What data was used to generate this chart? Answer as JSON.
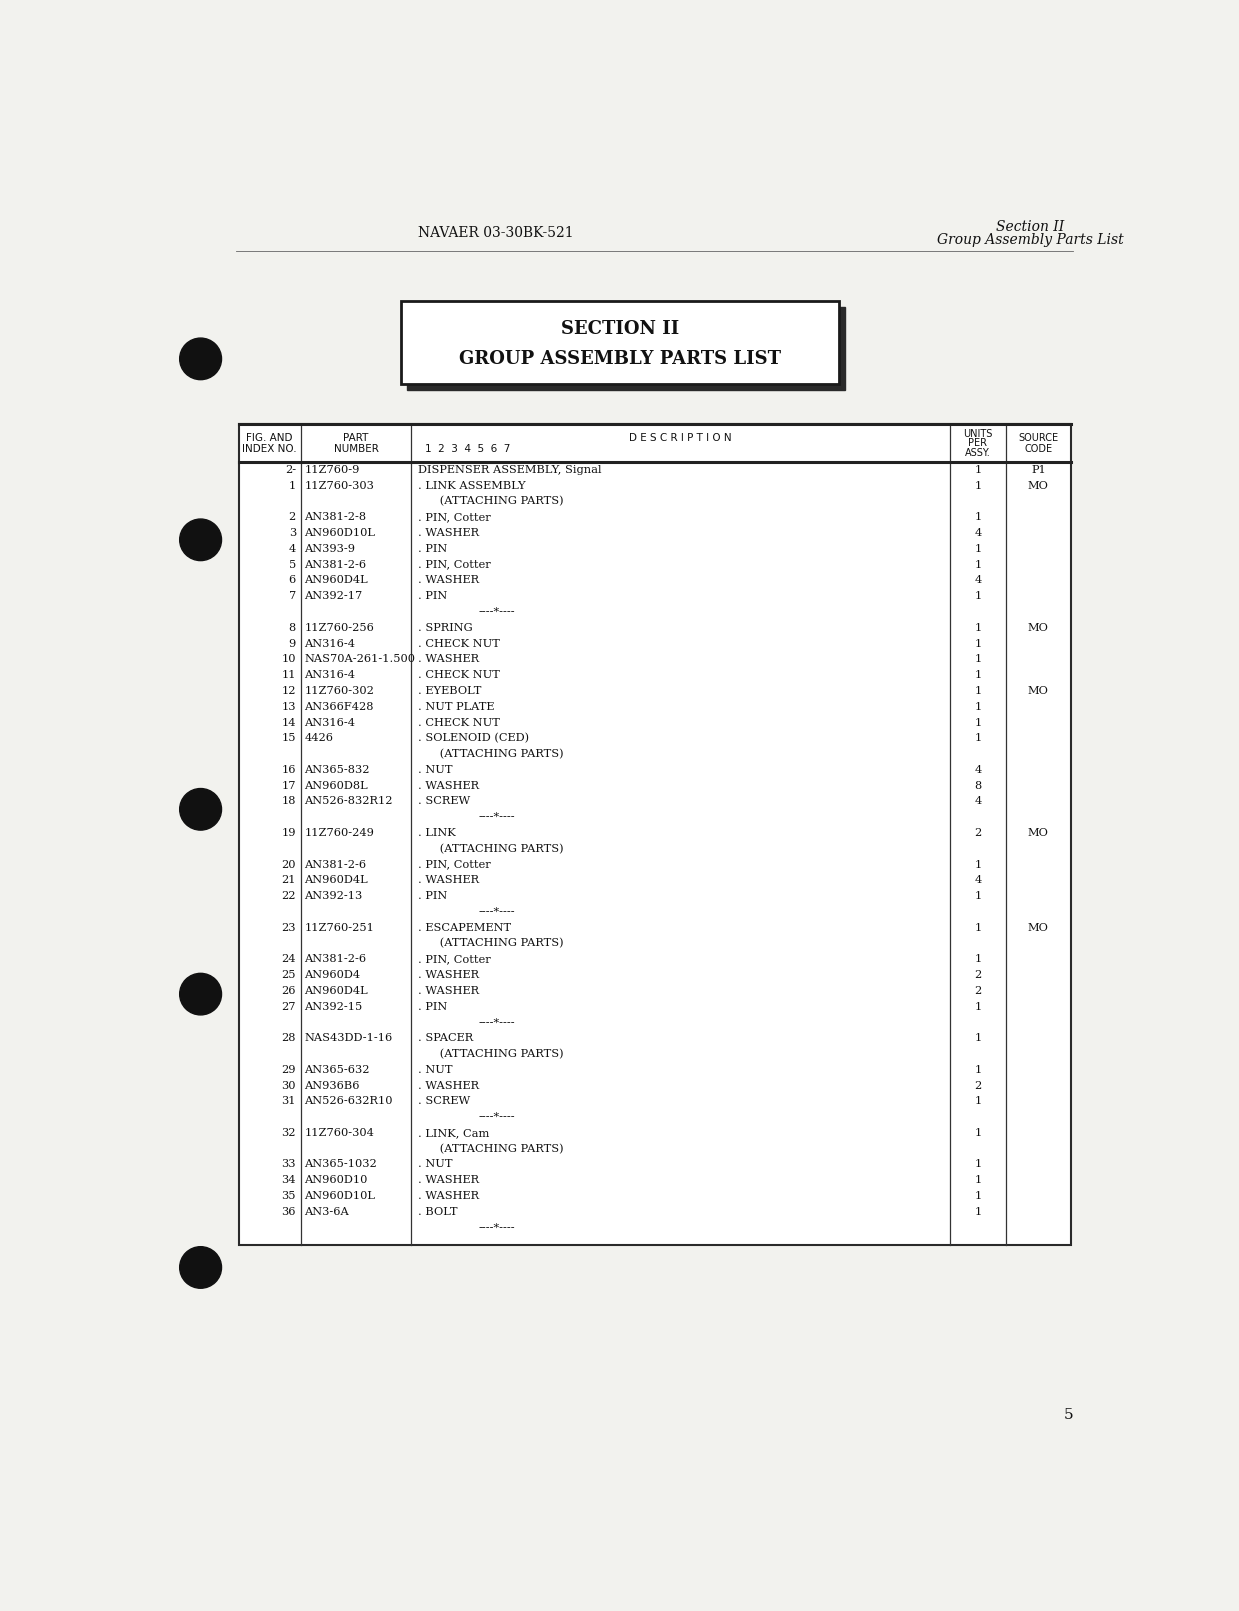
{
  "page_header_left": "NAVAER 03-30BK-521",
  "page_header_right_line1": "Section II",
  "page_header_right_line2": "Group Assembly Parts List",
  "section_title_line1": "SECTION II",
  "section_title_line2": "GROUP ASSEMBLY PARTS LIST",
  "page_number": "5",
  "table_headers": {
    "col1_line1": "FIG. AND",
    "col1_line2": "INDEX NO.",
    "col2_line1": "PART",
    "col2_line2": "NUMBER",
    "col3_line1": "D E S C R I P T I O N",
    "col3_line2": "1  2  3  4  5  6  7",
    "col4_line1": "UNITS",
    "col4_line2": "PER",
    "col4_line3": "ASSY.",
    "col5_line1": "SOURCE",
    "col5_line2": "CODE"
  },
  "rows": [
    {
      "fig": "2-",
      "part": "11Z760-9",
      "desc": "DISPENSER ASSEMBLY, Signal",
      "units": "1",
      "source": "P1",
      "separator": false
    },
    {
      "fig": "1",
      "part": "11Z760-303",
      "desc": ". LINK ASSEMBLY",
      "units": "1",
      "source": "MO",
      "separator": false
    },
    {
      "fig": "",
      "part": "",
      "desc": "      (ATTACHING PARTS)",
      "units": "",
      "source": "",
      "separator": false
    },
    {
      "fig": "2",
      "part": "AN381-2-8",
      "desc": ". PIN, Cotter",
      "units": "1",
      "source": "",
      "separator": false
    },
    {
      "fig": "3",
      "part": "AN960D10L",
      "desc": ". WASHER",
      "units": "4",
      "source": "",
      "separator": false
    },
    {
      "fig": "4",
      "part": "AN393-9",
      "desc": ". PIN",
      "units": "1",
      "source": "",
      "separator": false
    },
    {
      "fig": "5",
      "part": "AN381-2-6",
      "desc": ". PIN, Cotter",
      "units": "1",
      "source": "",
      "separator": false
    },
    {
      "fig": "6",
      "part": "AN960D4L",
      "desc": ". WASHER",
      "units": "4",
      "source": "",
      "separator": false
    },
    {
      "fig": "7",
      "part": "AN392-17",
      "desc": ". PIN",
      "units": "1",
      "source": "",
      "separator": false
    },
    {
      "fig": "",
      "part": "",
      "desc": "----*----",
      "units": "",
      "source": "",
      "separator": true
    },
    {
      "fig": "8",
      "part": "11Z760-256",
      "desc": ". SPRING",
      "units": "1",
      "source": "MO",
      "separator": false
    },
    {
      "fig": "9",
      "part": "AN316-4",
      "desc": ". CHECK NUT",
      "units": "1",
      "source": "",
      "separator": false
    },
    {
      "fig": "10",
      "part": "NAS70A-261-1.500",
      "desc": ". WASHER",
      "units": "1",
      "source": "",
      "separator": false
    },
    {
      "fig": "11",
      "part": "AN316-4",
      "desc": ". CHECK NUT",
      "units": "1",
      "source": "",
      "separator": false
    },
    {
      "fig": "12",
      "part": "11Z760-302",
      "desc": ". EYEBOLT",
      "units": "1",
      "source": "MO",
      "separator": false
    },
    {
      "fig": "13",
      "part": "AN366F428",
      "desc": ". NUT PLATE",
      "units": "1",
      "source": "",
      "separator": false
    },
    {
      "fig": "14",
      "part": "AN316-4",
      "desc": ". CHECK NUT",
      "units": "1",
      "source": "",
      "separator": false
    },
    {
      "fig": "15",
      "part": "4426",
      "desc": ". SOLENOID (CED)",
      "units": "1",
      "source": "",
      "separator": false
    },
    {
      "fig": "",
      "part": "",
      "desc": "      (ATTACHING PARTS)",
      "units": "",
      "source": "",
      "separator": false
    },
    {
      "fig": "16",
      "part": "AN365-832",
      "desc": ". NUT",
      "units": "4",
      "source": "",
      "separator": false
    },
    {
      "fig": "17",
      "part": "AN960D8L",
      "desc": ". WASHER",
      "units": "8",
      "source": "",
      "separator": false
    },
    {
      "fig": "18",
      "part": "AN526-832R12",
      "desc": ". SCREW",
      "units": "4",
      "source": "",
      "separator": false
    },
    {
      "fig": "",
      "part": "",
      "desc": "----*----",
      "units": "",
      "source": "",
      "separator": true
    },
    {
      "fig": "19",
      "part": "11Z760-249",
      "desc": ". LINK",
      "units": "2",
      "source": "MO",
      "separator": false
    },
    {
      "fig": "",
      "part": "",
      "desc": "      (ATTACHING PARTS)",
      "units": "",
      "source": "",
      "separator": false
    },
    {
      "fig": "20",
      "part": "AN381-2-6",
      "desc": ". PIN, Cotter",
      "units": "1",
      "source": "",
      "separator": false
    },
    {
      "fig": "21",
      "part": "AN960D4L",
      "desc": ". WASHER",
      "units": "4",
      "source": "",
      "separator": false
    },
    {
      "fig": "22",
      "part": "AN392-13",
      "desc": ". PIN",
      "units": "1",
      "source": "",
      "separator": false
    },
    {
      "fig": "",
      "part": "",
      "desc": "----*----",
      "units": "",
      "source": "",
      "separator": true
    },
    {
      "fig": "23",
      "part": "11Z760-251",
      "desc": ". ESCAPEMENT",
      "units": "1",
      "source": "MO",
      "separator": false
    },
    {
      "fig": "",
      "part": "",
      "desc": "      (ATTACHING PARTS)",
      "units": "",
      "source": "",
      "separator": false
    },
    {
      "fig": "24",
      "part": "AN381-2-6",
      "desc": ". PIN, Cotter",
      "units": "1",
      "source": "",
      "separator": false
    },
    {
      "fig": "25",
      "part": "AN960D4",
      "desc": ". WASHER",
      "units": "2",
      "source": "",
      "separator": false
    },
    {
      "fig": "26",
      "part": "AN960D4L",
      "desc": ". WASHER",
      "units": "2",
      "source": "",
      "separator": false
    },
    {
      "fig": "27",
      "part": "AN392-15",
      "desc": ". PIN",
      "units": "1",
      "source": "",
      "separator": false
    },
    {
      "fig": "",
      "part": "",
      "desc": "----*----",
      "units": "",
      "source": "",
      "separator": true
    },
    {
      "fig": "28",
      "part": "NAS43DD-1-16",
      "desc": ". SPACER",
      "units": "1",
      "source": "",
      "separator": false
    },
    {
      "fig": "",
      "part": "",
      "desc": "      (ATTACHING PARTS)",
      "units": "",
      "source": "",
      "separator": false
    },
    {
      "fig": "29",
      "part": "AN365-632",
      "desc": ". NUT",
      "units": "1",
      "source": "",
      "separator": false
    },
    {
      "fig": "30",
      "part": "AN936B6",
      "desc": ". WASHER",
      "units": "2",
      "source": "",
      "separator": false
    },
    {
      "fig": "31",
      "part": "AN526-632R10",
      "desc": ". SCREW",
      "units": "1",
      "source": "",
      "separator": false
    },
    {
      "fig": "",
      "part": "",
      "desc": "----*----",
      "units": "",
      "source": "",
      "separator": true
    },
    {
      "fig": "32",
      "part": "11Z760-304",
      "desc": ". LINK, Cam",
      "units": "1",
      "source": "",
      "separator": false
    },
    {
      "fig": "",
      "part": "",
      "desc": "      (ATTACHING PARTS)",
      "units": "",
      "source": "",
      "separator": false
    },
    {
      "fig": "33",
      "part": "AN365-1032",
      "desc": ". NUT",
      "units": "1",
      "source": "",
      "separator": false
    },
    {
      "fig": "34",
      "part": "AN960D10",
      "desc": ". WASHER",
      "units": "1",
      "source": "",
      "separator": false
    },
    {
      "fig": "35",
      "part": "AN960D10L",
      "desc": ". WASHER",
      "units": "1",
      "source": "",
      "separator": false
    },
    {
      "fig": "36",
      "part": "AN3-6A",
      "desc": ". BOLT",
      "units": "1",
      "source": "",
      "separator": false
    },
    {
      "fig": "",
      "part": "",
      "desc": "----*----",
      "units": "",
      "source": "",
      "separator": true
    }
  ],
  "bg_color": "#f2f2ee",
  "text_color": "#111111",
  "table_bg": "#ffffff"
}
